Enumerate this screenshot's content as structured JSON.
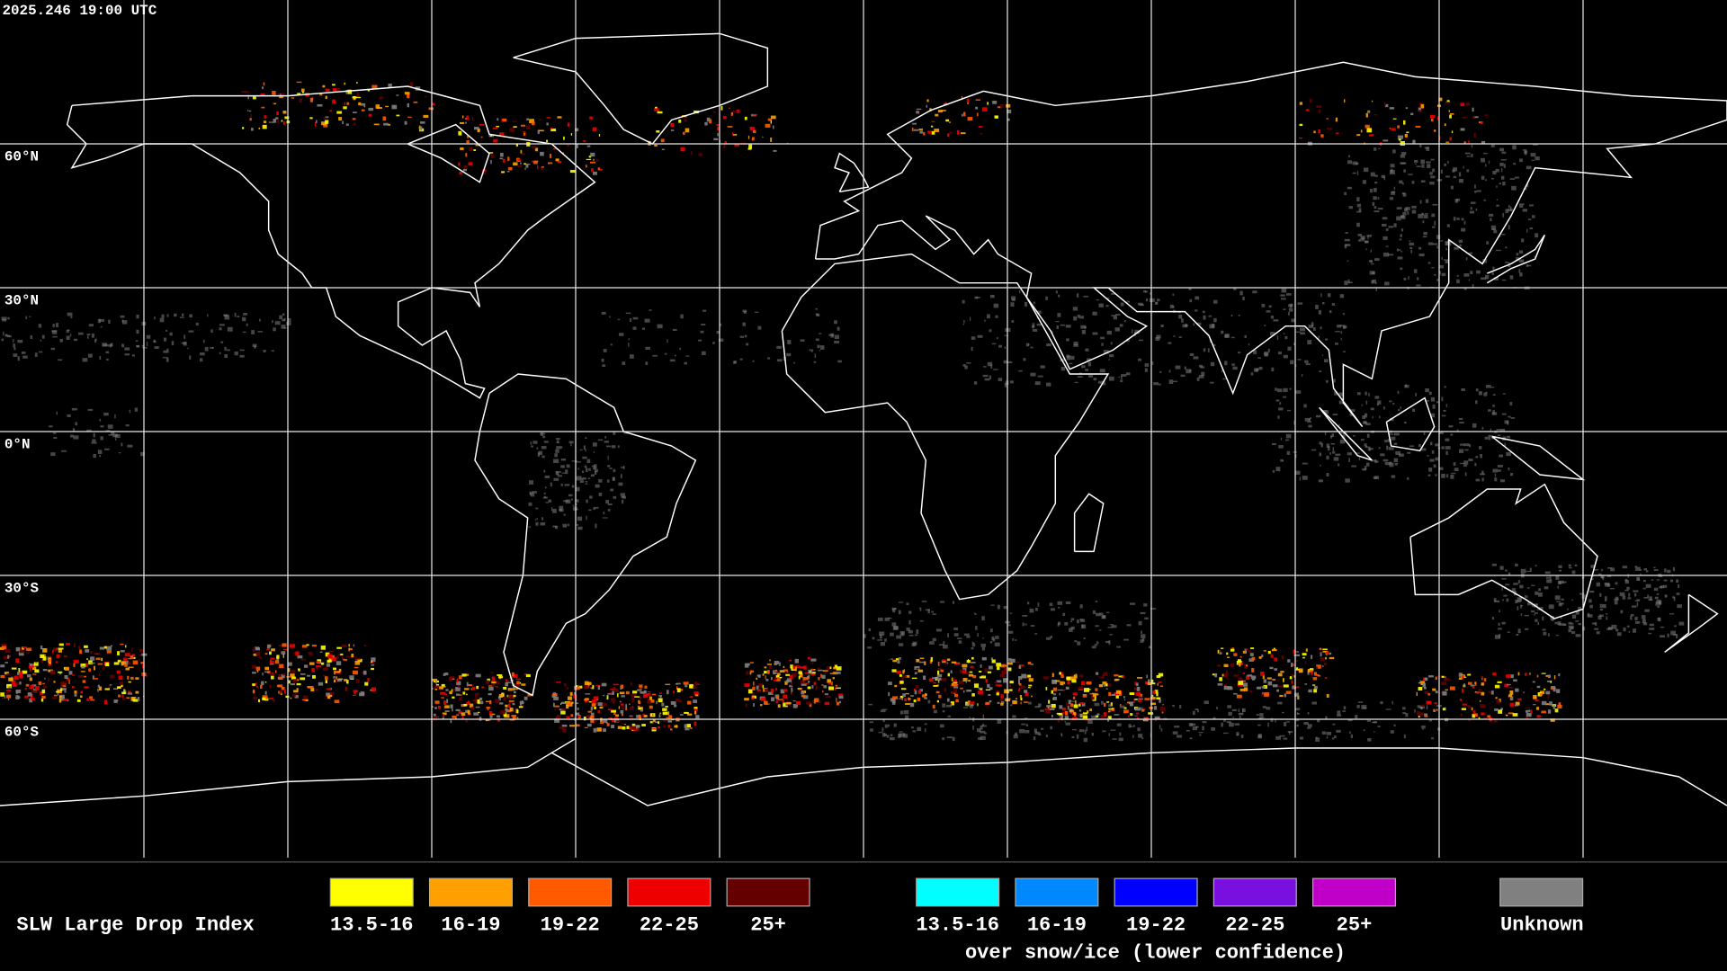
{
  "header": {
    "timestamp": "2025.246 19:00 UTC"
  },
  "map": {
    "lat_labels": [
      "60°N",
      "30°N",
      "0°N",
      "30°S",
      "60°S"
    ]
  },
  "legend": {
    "title": "SLW Large Drop Index",
    "items": [
      {
        "label": "13.5-16",
        "color": "#ffff00"
      },
      {
        "label": "16-19",
        "color": "#ffa000"
      },
      {
        "label": "19-22",
        "color": "#ff5a00"
      },
      {
        "label": "22-25",
        "color": "#ee0000"
      },
      {
        "label": "25+",
        "color": "#640000"
      }
    ],
    "snow_items": [
      {
        "label": "13.5-16",
        "color": "#00ffff"
      },
      {
        "label": "16-19",
        "color": "#0088ff"
      },
      {
        "label": "19-22",
        "color": "#0000ff"
      },
      {
        "label": "22-25",
        "color": "#7a10e0"
      },
      {
        "label": "25+",
        "color": "#c000c8"
      }
    ],
    "snow_caption": "over snow/ice (lower confidence)",
    "unknown": {
      "label": "Unknown",
      "color": "#808080"
    }
  }
}
